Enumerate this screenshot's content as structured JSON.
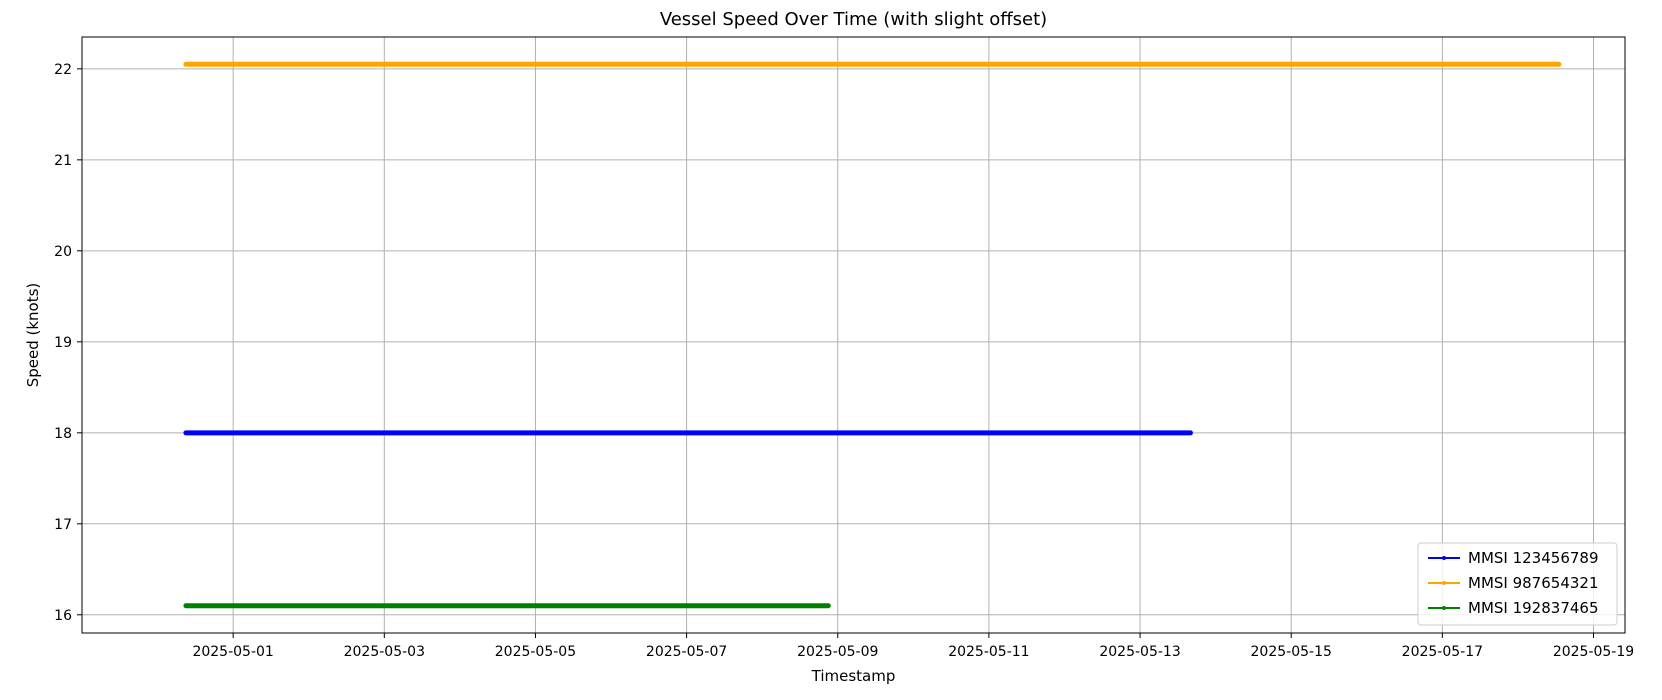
{
  "chart_data": {
    "type": "line",
    "title": "Vessel Speed Over Time (with slight offset)",
    "xlabel": "Timestamp",
    "ylabel": "Speed (knots)",
    "x_type": "date",
    "xlim": [
      "2025-04-29T00:00:00",
      "2025-05-19T10:00:00"
    ],
    "ylim": [
      15.8,
      22.35
    ],
    "x_ticks": [
      "2025-05-01",
      "2025-05-03",
      "2025-05-05",
      "2025-05-07",
      "2025-05-09",
      "2025-05-11",
      "2025-05-13",
      "2025-05-15",
      "2025-05-17",
      "2025-05-19"
    ],
    "y_ticks": [
      16,
      17,
      18,
      19,
      20,
      21,
      22
    ],
    "grid": true,
    "legend_position": "lower-right",
    "series": [
      {
        "name": "MMSI 123456789",
        "color": "#0000ff",
        "x": [
          "2025-04-30T09:00:00",
          "2025-05-13T16:00:00"
        ],
        "values": [
          18.0,
          18.0
        ]
      },
      {
        "name": "MMSI 987654321",
        "color": "#ffa500",
        "x": [
          "2025-04-30T09:00:00",
          "2025-05-18T13:00:00"
        ],
        "values": [
          22.05,
          22.05
        ]
      },
      {
        "name": "MMSI 192837465",
        "color": "#008000",
        "x": [
          "2025-04-30T09:00:00",
          "2025-05-08T21:00:00"
        ],
        "values": [
          16.1,
          16.1
        ]
      }
    ]
  }
}
